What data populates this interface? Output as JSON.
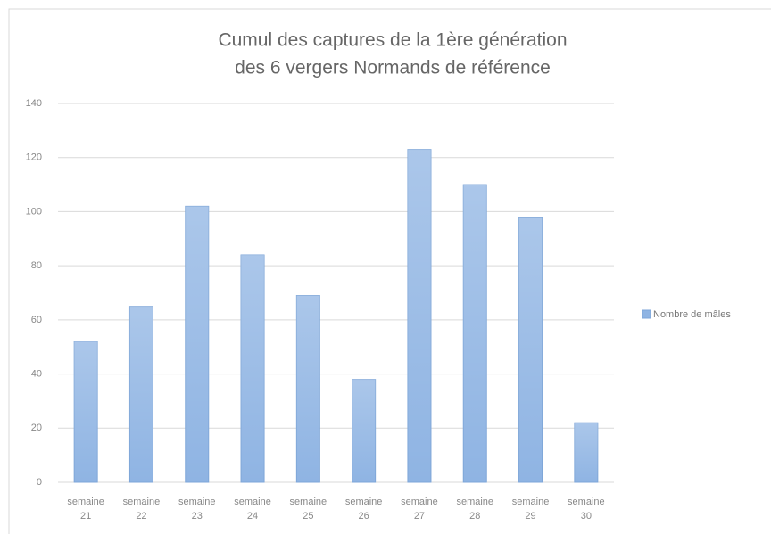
{
  "chart_data": {
    "type": "bar",
    "title": [
      "Cumul des captures de la 1ère  génération",
      "des 6 vergers Normands de référence"
    ],
    "categories": [
      "semaine 21",
      "semaine 22",
      "semaine 23",
      "semaine 24",
      "semaine 25",
      "semaine 26",
      "semaine 27",
      "semaine 28",
      "semaine 29",
      "semaine 30"
    ],
    "series": [
      {
        "name": "Nombre de mâles",
        "color": "#8fb4e3",
        "values": [
          52,
          65,
          102,
          84,
          69,
          38,
          123,
          110,
          98,
          22
        ]
      }
    ],
    "ylim": [
      0,
      140
    ],
    "yticks": [
      0,
      20,
      40,
      60,
      80,
      100,
      120,
      140
    ],
    "grid": true,
    "legend": "right"
  }
}
